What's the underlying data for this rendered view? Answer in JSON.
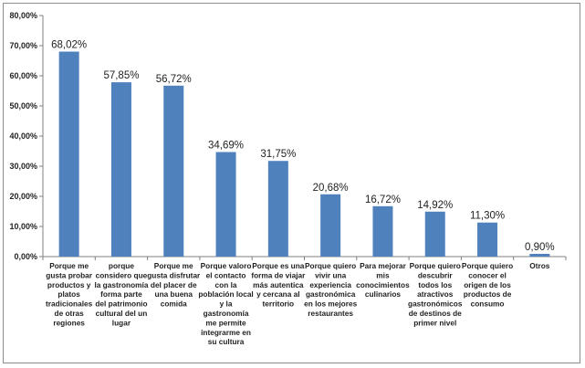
{
  "chart_data": {
    "type": "bar",
    "title": "",
    "xlabel": "",
    "ylabel": "",
    "ylim": [
      0,
      80
    ],
    "yticks": [
      0,
      10,
      20,
      30,
      40,
      50,
      60,
      70,
      80
    ],
    "ytick_labels": [
      "0,00%",
      "10,00%",
      "20,00%",
      "30,00%",
      "40,00%",
      "50,00%",
      "60,00%",
      "70,00%",
      "80,00%"
    ],
    "grid": false,
    "legend": "none",
    "bar_color": "#4f81bd",
    "categories": [
      [
        "Porque me",
        "gusta probar",
        "productos y",
        "platos",
        "tradicionales",
        "de otras",
        "regiones"
      ],
      [
        "porque",
        "considero que",
        "la gastronomía",
        "forma parte",
        "del patrimonio",
        "cultural del un",
        "lugar"
      ],
      [
        "Porque me",
        "gusta disfrutar",
        "del placer de",
        "una buena",
        "comida"
      ],
      [
        "Porque valoro",
        "el contacto",
        "con la",
        "población local",
        "y la",
        "gastronomía",
        "me permite",
        "integrarme en",
        "su cultura"
      ],
      [
        "Porque es una",
        "forma de viajar",
        "más autentica",
        "y cercana al",
        "territorio"
      ],
      [
        "Porque quiero",
        "vivir una",
        "experiencia",
        "gastronómica",
        "en los mejores",
        "restaurantes"
      ],
      [
        "Para mejorar",
        "mis",
        "conocimientos",
        "culinarios"
      ],
      [
        "Porque quiero",
        "descubrir",
        "todos los",
        "atractivos",
        "gastronómicos",
        "de destinos de",
        "primer nivel"
      ],
      [
        "Porque quiero",
        "conocer el",
        "origen de los",
        "productos de",
        "consumo"
      ],
      [
        "Otros"
      ]
    ],
    "values": [
      68.02,
      57.85,
      56.72,
      34.69,
      31.75,
      20.68,
      16.72,
      14.92,
      11.3,
      0.9
    ],
    "value_labels": [
      "68,02%",
      "57,85%",
      "56,72%",
      "34,69%",
      "31,75%",
      "20,68%",
      "16,72%",
      "14,92%",
      "11,30%",
      "0,90%"
    ]
  }
}
